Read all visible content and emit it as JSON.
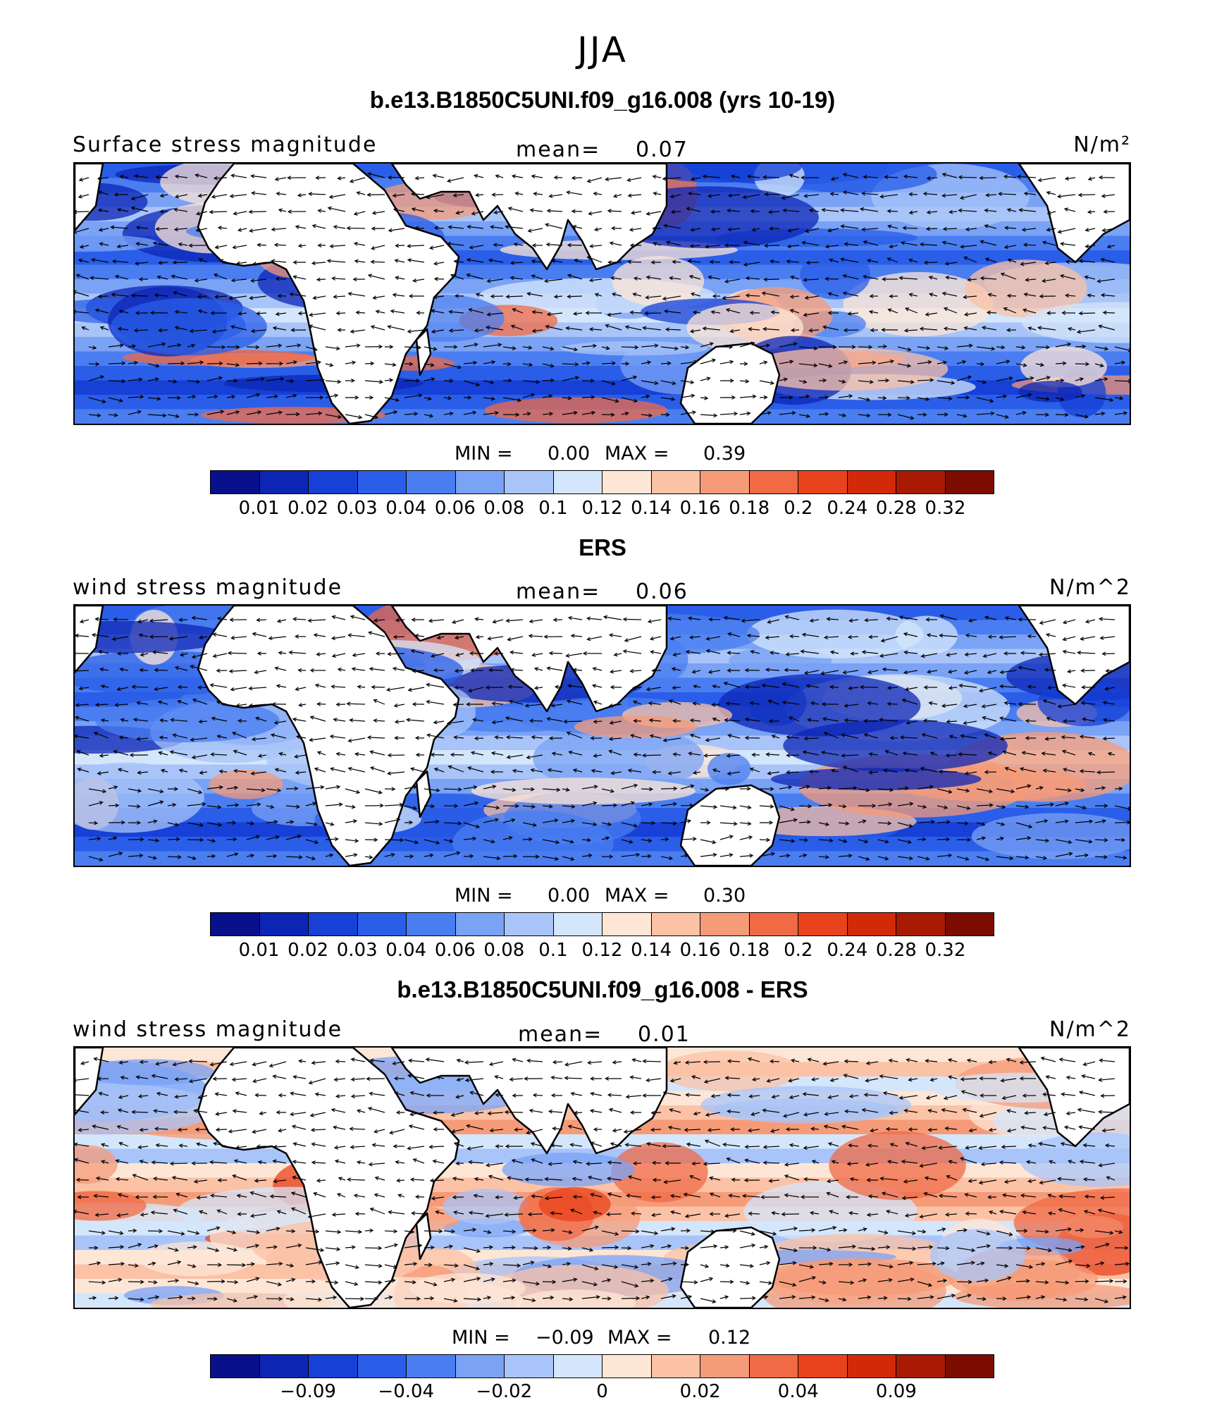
{
  "figure": {
    "season": "JJA",
    "colors": [
      "#08108c",
      "#0c25b5",
      "#1640d6",
      "#2a5ee8",
      "#4a7ef0",
      "#7aa2f5",
      "#a8c4f8",
      "#d4e6fb",
      "#fde6d6",
      "#fbc2a6",
      "#f69b78",
      "#f06a45",
      "#e8431c",
      "#d22a08",
      "#a81a04",
      "#7d0c00"
    ]
  },
  "panels": [
    {
      "title": "b.e13.B1850C5UNI.f09_g16.008 (yrs 10-19)",
      "left_label": "Surface stress magnitude",
      "mean_label": "mean=",
      "mean_value": "0.07",
      "units": "N/m²",
      "min_label": "MIN =",
      "min_value": "0.00",
      "max_label": "MAX =",
      "max_value": "0.39",
      "ticks": [
        "0.01",
        "0.02",
        "0.03",
        "0.04",
        "0.06",
        "0.08",
        "0.1",
        "0.12",
        "0.14",
        "0.16",
        "0.18",
        "0.2",
        "0.24",
        "0.28",
        "0.32"
      ]
    },
    {
      "title": "ERS",
      "left_label": "wind stress magnitude",
      "mean_label": "mean=",
      "mean_value": "0.06",
      "units": "N/m^2",
      "min_label": "MIN =",
      "min_value": "0.00",
      "max_label": "MAX =",
      "max_value": "0.30",
      "ticks": [
        "0.01",
        "0.02",
        "0.03",
        "0.04",
        "0.06",
        "0.08",
        "0.1",
        "0.12",
        "0.14",
        "0.16",
        "0.18",
        "0.2",
        "0.24",
        "0.28",
        "0.32"
      ]
    },
    {
      "title": "b.e13.B1850C5UNI.f09_g16.008 - ERS",
      "left_label": "wind stress magnitude",
      "mean_label": "mean=",
      "mean_value": "0.01",
      "units": "N/m^2",
      "min_label": "MIN =",
      "min_value": "−0.09",
      "max_label": "MAX =",
      "max_value": "0.12",
      "ticks": [
        "−0.09",
        "−0.04",
        "−0.02",
        "0",
        "0.02",
        "0.04",
        "0.09"
      ]
    }
  ]
}
